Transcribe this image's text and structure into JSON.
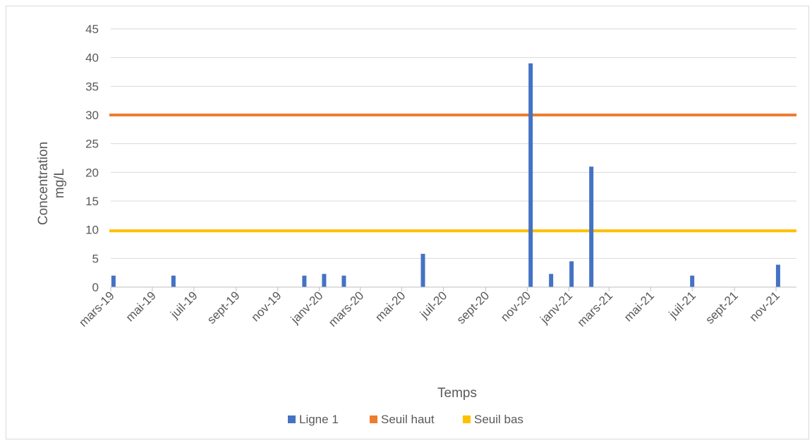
{
  "chart_data": {
    "type": "bar",
    "title": "",
    "xlabel": "Temps",
    "ylabel_lines": [
      "Concentration",
      "mg/L"
    ],
    "ylim": [
      0,
      45
    ],
    "y_ticks": [
      0,
      5,
      10,
      15,
      20,
      25,
      30,
      35,
      40,
      45
    ],
    "x_start": "2019-03-01",
    "x_end": "2021-12-01",
    "x_tick_dates": [
      "2019-03-01",
      "2019-05-01",
      "2019-07-01",
      "2019-09-01",
      "2019-11-01",
      "2020-01-01",
      "2020-03-01",
      "2020-05-01",
      "2020-07-01",
      "2020-09-01",
      "2020-11-01",
      "2021-01-01",
      "2021-03-01",
      "2021-05-01",
      "2021-07-01",
      "2021-09-01",
      "2021-11-01"
    ],
    "x_tick_labels": [
      "mars-19",
      "mai-19",
      "juil-19",
      "sept-19",
      "nov-19",
      "janv-20",
      "mars-20",
      "mai-20",
      "juil-20",
      "sept-20",
      "nov-20",
      "janv-21",
      "mars-21",
      "mai-21",
      "juil-21",
      "sept-21",
      "nov-21"
    ],
    "grid": true,
    "legend_position": "bottom",
    "series": [
      {
        "name": "Ligne 1",
        "kind": "bar",
        "color": "#4472C4",
        "points": [
          {
            "x": "2019-03-05",
            "y": 2
          },
          {
            "x": "2019-06-01",
            "y": 2
          },
          {
            "x": "2019-12-10",
            "y": 2
          },
          {
            "x": "2020-01-08",
            "y": 2.3
          },
          {
            "x": "2020-02-06",
            "y": 2
          },
          {
            "x": "2020-06-01",
            "y": 5.8
          },
          {
            "x": "2020-11-06",
            "y": 39
          },
          {
            "x": "2020-12-06",
            "y": 2.3
          },
          {
            "x": "2021-01-05",
            "y": 4.5
          },
          {
            "x": "2021-02-03",
            "y": 21
          },
          {
            "x": "2021-07-01",
            "y": 2
          },
          {
            "x": "2021-11-04",
            "y": 3.9
          }
        ]
      },
      {
        "name": "Seuil haut",
        "kind": "line",
        "color": "#ED7D31",
        "value": 30
      },
      {
        "name": "Seuil bas",
        "kind": "line",
        "color": "#FFC000",
        "value": 9.8
      }
    ]
  }
}
